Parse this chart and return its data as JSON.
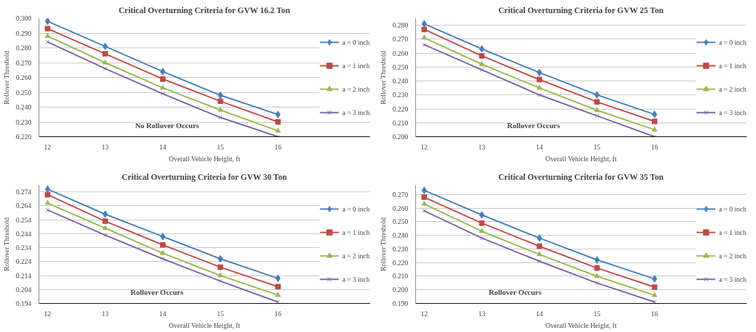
{
  "chart_data": [
    {
      "type": "line",
      "title": "Critical Overturning Criteria for GVW 16.2 Ton",
      "xlabel": "Overall Vehicle Height, ft",
      "ylabel": "Rollover Threshold",
      "categories": [
        "12",
        "13",
        "14",
        "15",
        "16"
      ],
      "ylim": [
        0.22,
        0.3
      ],
      "yticks": [
        {
          "value": 0.22,
          "label": "0.220"
        },
        {
          "value": 0.23,
          "label": "0.230"
        },
        {
          "value": 0.24,
          "label": "0.240"
        },
        {
          "value": 0.25,
          "label": "0.250"
        },
        {
          "value": 0.26,
          "label": "0.260"
        },
        {
          "value": 0.27,
          "label": "0.270"
        },
        {
          "value": 0.28,
          "label": "0.280"
        },
        {
          "value": 0.29,
          "label": "0.290"
        },
        {
          "value": 0.3,
          "label": "0.300"
        }
      ],
      "grid": "y",
      "legend": "right",
      "annotations": [
        "No Rollover Occurs"
      ],
      "series": [
        {
          "name": "a = 0 inch",
          "color": "#4a7ebb",
          "marker": "diamond",
          "values": [
            0.298,
            0.281,
            0.264,
            0.248,
            0.235
          ]
        },
        {
          "name": "a = 1 inch",
          "color": "#be4b48",
          "marker": "square",
          "values": [
            0.293,
            0.276,
            0.259,
            0.244,
            0.23
          ]
        },
        {
          "name": "a = 2 inch",
          "color": "#98b954",
          "marker": "triangle",
          "values": [
            0.288,
            0.27,
            0.253,
            0.238,
            0.224
          ]
        },
        {
          "name": "a = 3 inch",
          "color": "#7d60a0",
          "marker": "cross",
          "values": [
            0.284,
            0.266,
            0.249,
            0.233,
            0.22
          ]
        }
      ]
    },
    {
      "type": "line",
      "title": "Critical Overturning Criteria for GVW 25 Ton",
      "xlabel": "Overall Vehicle Height, ft",
      "ylabel": "Rollover Threshold",
      "categories": [
        "12",
        "13",
        "14",
        "15",
        "16"
      ],
      "ylim": [
        0.2,
        0.285
      ],
      "yticks": [
        {
          "value": 0.2,
          "label": "0.200"
        },
        {
          "value": 0.21,
          "label": "0.210"
        },
        {
          "value": 0.22,
          "label": "0.220"
        },
        {
          "value": 0.23,
          "label": "0.230"
        },
        {
          "value": 0.24,
          "label": "0.240"
        },
        {
          "value": 0.25,
          "label": "0.250"
        },
        {
          "value": 0.26,
          "label": "0.260"
        },
        {
          "value": 0.27,
          "label": "0.270"
        },
        {
          "value": 0.28,
          "label": "0.280"
        }
      ],
      "grid": "y",
      "legend": "right",
      "annotations": [
        "Rollover Occurs"
      ],
      "series": [
        {
          "name": "a = 0 inch",
          "color": "#4a7ebb",
          "marker": "diamond",
          "values": [
            0.281,
            0.263,
            0.246,
            0.23,
            0.216
          ]
        },
        {
          "name": "a = 1 inch",
          "color": "#be4b48",
          "marker": "square",
          "values": [
            0.277,
            0.258,
            0.241,
            0.225,
            0.211
          ]
        },
        {
          "name": "a = 2 inch",
          "color": "#98b954",
          "marker": "triangle",
          "values": [
            0.271,
            0.252,
            0.235,
            0.219,
            0.205
          ]
        },
        {
          "name": "a = 3 inch",
          "color": "#7d60a0",
          "marker": "cross",
          "values": [
            0.266,
            0.248,
            0.23,
            0.215,
            0.2
          ]
        }
      ]
    },
    {
      "type": "line",
      "title": "Critical Overturning Criteria for GVW 30 Ton",
      "xlabel": "Overall Vehicle Height, ft",
      "ylabel": "Rollover Threshold",
      "categories": [
        "12",
        "13",
        "14",
        "15",
        "16"
      ],
      "ylim": [
        0.194,
        0.279
      ],
      "yticks": [
        0.194,
        0.204,
        0.214,
        0.224,
        0.234,
        0.244,
        0.254,
        0.264,
        0.274
      ],
      "grid": "y",
      "legend": "right",
      "annotations": [
        "Rollover Occurs"
      ],
      "series": [
        {
          "name": "a = 0 inch",
          "color": "#4a7ebb",
          "marker": "diamond",
          "values": [
            0.276,
            0.258,
            0.242,
            0.226,
            0.212
          ]
        },
        {
          "name": "a = 1 inch",
          "color": "#be4b48",
          "marker": "square",
          "values": [
            0.272,
            0.253,
            0.236,
            0.22,
            0.206
          ]
        },
        {
          "name": "a = 2 inch",
          "color": "#98b954",
          "marker": "triangle",
          "values": [
            0.266,
            0.248,
            0.23,
            0.214,
            0.2
          ]
        },
        {
          "name": "a = 3 inch",
          "color": "#7d60a0",
          "marker": "cross",
          "values": [
            0.261,
            0.243,
            0.226,
            0.21,
            0.195
          ]
        }
      ]
    },
    {
      "type": "line",
      "title": "Critical Overturning Criteria for GVW 35 Ton",
      "xlabel": "Overall Vehicle Height, ft",
      "ylabel": "Rollover Threshold",
      "categories": [
        "12",
        "13",
        "14",
        "15",
        "16"
      ],
      "ylim": [
        0.19,
        0.277
      ],
      "yticks": [
        {
          "value": 0.19,
          "label": "0.190"
        },
        {
          "value": 0.2,
          "label": "0.200"
        },
        {
          "value": 0.21,
          "label": "0.210"
        },
        {
          "value": 0.22,
          "label": "0.220"
        },
        {
          "value": 0.23,
          "label": "0.230"
        },
        {
          "value": 0.24,
          "label": "0.240"
        },
        {
          "value": 0.25,
          "label": "0.250"
        },
        {
          "value": 0.26,
          "label": "0.260"
        },
        {
          "value": 0.27,
          "label": "0.270"
        }
      ],
      "grid": "y",
      "legend": "right",
      "annotations": [
        "Rollover Occurs"
      ],
      "series": [
        {
          "name": "a = 0 inch",
          "color": "#4a7ebb",
          "marker": "diamond",
          "values": [
            0.273,
            0.255,
            0.238,
            0.222,
            0.208
          ]
        },
        {
          "name": "a = 1 inch",
          "color": "#be4b48",
          "marker": "square",
          "values": [
            0.268,
            0.249,
            0.232,
            0.216,
            0.202
          ]
        },
        {
          "name": "a = 2 inch",
          "color": "#98b954",
          "marker": "triangle",
          "values": [
            0.263,
            0.243,
            0.226,
            0.21,
            0.196
          ]
        },
        {
          "name": "a = 3 inch",
          "color": "#7d60a0",
          "marker": "cross",
          "values": [
            0.258,
            0.238,
            0.221,
            0.205,
            0.191
          ]
        }
      ]
    }
  ]
}
